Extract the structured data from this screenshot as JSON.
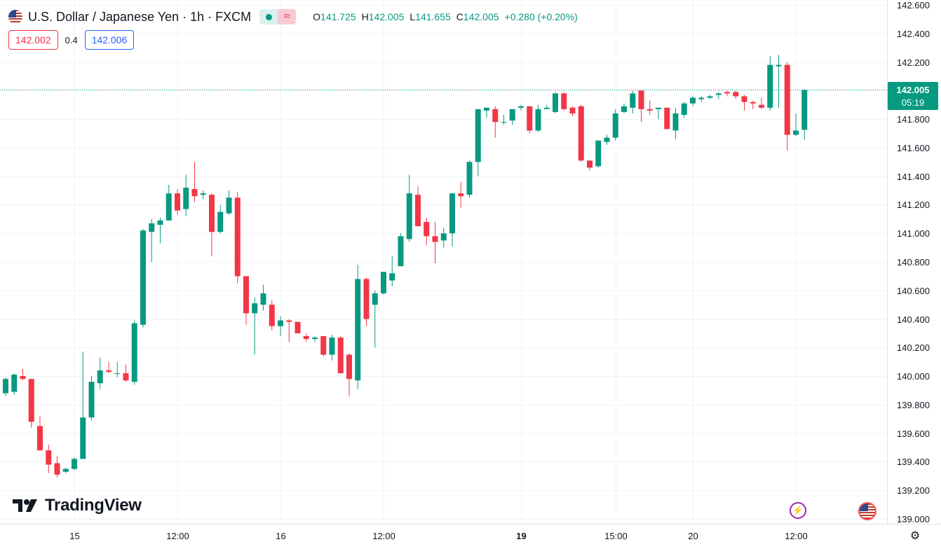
{
  "header": {
    "symbol_title": "U.S. Dollar / Japanese Yen · 1h · FXCM",
    "ohlc": {
      "o_label": "O",
      "o_value": "141.725",
      "h_label": "H",
      "h_value": "142.005",
      "l_label": "L",
      "l_value": "141.655",
      "c_label": "C",
      "c_value": "142.005",
      "change": "+0.280 (+0.20%)"
    },
    "sell_price": "142.002",
    "spread": "0.4",
    "buy_price": "142.006"
  },
  "last_price": {
    "price": "142.005",
    "countdown": "05:19"
  },
  "branding": {
    "logo_text": "TradingView"
  },
  "colors": {
    "up": "#089981",
    "down": "#f23645",
    "grid": "#f0f3fa"
  },
  "icons": [
    "us-flag-icon",
    "market-open-dot-icon",
    "wave-icon",
    "bolt-icon",
    "settings-icon"
  ],
  "chart_data": {
    "type": "candlestick",
    "title": "U.S. Dollar / Japanese Yen · 1h · FXCM",
    "ylim": [
      139.0,
      142.6
    ],
    "y_ticks": [
      "142.600",
      "142.400",
      "142.200",
      "142.000",
      "141.800",
      "141.600",
      "141.400",
      "141.200",
      "141.000",
      "140.800",
      "140.600",
      "140.400",
      "140.200",
      "140.000",
      "139.800",
      "139.600",
      "139.400",
      "139.200",
      "139.000"
    ],
    "x_ticks": [
      {
        "label": "15",
        "index": 8,
        "bold": false
      },
      {
        "label": "12:00",
        "index": 20,
        "bold": false
      },
      {
        "label": "16",
        "index": 32,
        "bold": false
      },
      {
        "label": "12:00",
        "index": 44,
        "bold": false
      },
      {
        "label": "19",
        "index": 60,
        "bold": true
      },
      {
        "label": "15:00",
        "index": 71,
        "bold": false
      },
      {
        "label": "20",
        "index": 80,
        "bold": false
      },
      {
        "label": "12:00",
        "index": 92,
        "bold": false
      }
    ],
    "grid": true,
    "last_price": 142.005,
    "candles": [
      [
        139.88,
        139.99,
        139.86,
        139.98
      ],
      [
        139.89,
        140.02,
        139.87,
        140.01
      ],
      [
        140.0,
        140.05,
        139.97,
        139.98
      ],
      [
        139.98,
        139.98,
        139.64,
        139.68
      ],
      [
        139.65,
        139.72,
        139.49,
        139.48
      ],
      [
        139.48,
        139.52,
        139.32,
        139.38
      ],
      [
        139.39,
        139.44,
        139.29,
        139.31
      ],
      [
        139.33,
        139.36,
        139.32,
        139.35
      ],
      [
        139.35,
        139.43,
        139.34,
        139.42
      ],
      [
        139.42,
        140.17,
        139.42,
        139.71
      ],
      [
        139.71,
        140.0,
        139.69,
        139.96
      ],
      [
        139.95,
        140.13,
        139.91,
        140.04
      ],
      [
        140.04,
        140.1,
        140.02,
        140.03
      ],
      [
        140.02,
        140.1,
        139.99,
        140.02
      ],
      [
        140.02,
        140.08,
        139.96,
        139.97
      ],
      [
        139.96,
        140.39,
        139.94,
        140.37
      ],
      [
        140.36,
        141.03,
        140.34,
        141.02
      ],
      [
        141.01,
        141.1,
        140.8,
        141.07
      ],
      [
        141.06,
        141.11,
        140.93,
        141.09
      ],
      [
        141.09,
        141.34,
        141.09,
        141.28
      ],
      [
        141.28,
        141.31,
        141.13,
        141.16
      ],
      [
        141.17,
        141.41,
        141.12,
        141.32
      ],
      [
        141.31,
        141.5,
        141.22,
        141.26
      ],
      [
        141.27,
        141.3,
        141.24,
        141.28
      ],
      [
        141.27,
        141.28,
        140.84,
        141.01
      ],
      [
        141.01,
        141.2,
        141.0,
        141.15
      ],
      [
        141.14,
        141.3,
        141.13,
        141.25
      ],
      [
        141.25,
        141.29,
        140.65,
        140.7
      ],
      [
        140.7,
        140.7,
        140.36,
        140.44
      ],
      [
        140.44,
        140.55,
        140.15,
        140.51
      ],
      [
        140.5,
        140.64,
        140.46,
        140.58
      ],
      [
        140.5,
        140.53,
        140.32,
        140.35
      ],
      [
        140.35,
        140.42,
        140.28,
        140.39
      ],
      [
        140.39,
        140.4,
        140.24,
        140.38
      ],
      [
        140.38,
        140.38,
        140.3,
        140.3
      ],
      [
        140.28,
        140.3,
        140.24,
        140.26
      ],
      [
        140.26,
        140.28,
        140.24,
        140.27
      ],
      [
        140.28,
        140.28,
        140.14,
        140.15
      ],
      [
        140.15,
        140.29,
        140.11,
        140.27
      ],
      [
        140.27,
        140.28,
        140.04,
        140.02
      ],
      [
        140.15,
        140.16,
        139.86,
        139.98
      ],
      [
        139.97,
        140.78,
        139.91,
        140.68
      ],
      [
        140.68,
        140.69,
        140.35,
        140.4
      ],
      [
        140.5,
        140.6,
        140.2,
        140.58
      ],
      [
        140.58,
        140.73,
        140.57,
        140.73
      ],
      [
        140.67,
        140.84,
        140.63,
        140.72
      ],
      [
        140.77,
        141.0,
        140.77,
        140.98
      ],
      [
        140.96,
        141.41,
        140.94,
        141.28
      ],
      [
        141.27,
        141.33,
        141.07,
        141.05
      ],
      [
        141.08,
        141.11,
        140.92,
        140.98
      ],
      [
        140.98,
        141.08,
        140.79,
        140.94
      ],
      [
        140.95,
        141.04,
        140.9,
        141.0
      ],
      [
        141.0,
        141.28,
        140.91,
        141.28
      ],
      [
        141.28,
        141.36,
        141.18,
        141.26
      ],
      [
        141.27,
        141.51,
        141.25,
        141.5
      ],
      [
        141.5,
        141.87,
        141.4,
        141.87
      ],
      [
        141.86,
        141.88,
        141.81,
        141.88
      ],
      [
        141.87,
        141.89,
        141.67,
        141.78
      ],
      [
        141.78,
        141.83,
        141.76,
        141.78
      ],
      [
        141.79,
        141.87,
        141.76,
        141.87
      ],
      [
        141.88,
        141.9,
        141.86,
        141.89
      ],
      [
        141.89,
        141.89,
        141.7,
        141.72
      ],
      [
        141.72,
        141.9,
        141.71,
        141.87
      ],
      [
        141.87,
        141.9,
        141.88,
        141.88
      ],
      [
        141.85,
        141.99,
        141.84,
        141.98
      ],
      [
        141.98,
        141.99,
        141.86,
        141.87
      ],
      [
        141.88,
        141.89,
        141.82,
        141.84
      ],
      [
        141.89,
        141.9,
        141.5,
        141.51
      ],
      [
        141.51,
        141.51,
        141.44,
        141.46
      ],
      [
        141.47,
        141.65,
        141.46,
        141.65
      ],
      [
        141.64,
        141.69,
        141.62,
        141.67
      ],
      [
        141.67,
        141.87,
        141.65,
        141.84
      ],
      [
        141.85,
        141.91,
        141.84,
        141.89
      ],
      [
        141.88,
        142.0,
        141.84,
        141.98
      ],
      [
        142.0,
        142.0,
        141.78,
        141.87
      ],
      [
        141.87,
        141.93,
        141.83,
        141.86
      ],
      [
        141.87,
        141.88,
        141.8,
        141.88
      ],
      [
        141.88,
        141.88,
        141.74,
        141.73
      ],
      [
        141.72,
        141.88,
        141.66,
        141.84
      ],
      [
        141.83,
        141.92,
        141.81,
        141.91
      ],
      [
        141.91,
        141.96,
        141.89,
        141.95
      ],
      [
        141.94,
        141.96,
        141.92,
        141.95
      ],
      [
        141.95,
        141.97,
        141.94,
        141.96
      ],
      [
        141.97,
        141.99,
        141.94,
        141.98
      ],
      [
        141.99,
        142.0,
        141.96,
        141.98
      ],
      [
        141.99,
        142.0,
        141.94,
        141.96
      ],
      [
        141.96,
        141.97,
        141.86,
        141.92
      ],
      [
        141.92,
        141.93,
        141.87,
        141.91
      ],
      [
        141.9,
        141.95,
        141.87,
        141.88
      ],
      [
        141.88,
        142.24,
        141.86,
        142.18
      ],
      [
        142.17,
        142.25,
        141.88,
        142.18
      ],
      [
        142.18,
        142.2,
        141.58,
        141.69
      ],
      [
        141.69,
        141.84,
        141.68,
        141.72
      ],
      [
        141.725,
        142.005,
        141.655,
        142.005
      ]
    ]
  }
}
